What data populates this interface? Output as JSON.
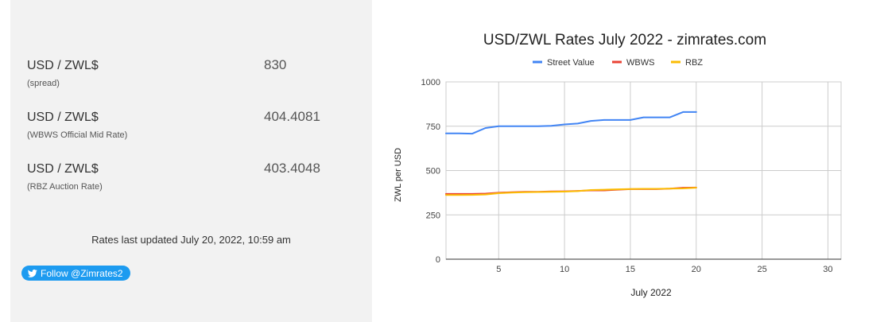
{
  "rates": [
    {
      "pair": "USD / ZWL$",
      "value": "830",
      "desc": "(spread)"
    },
    {
      "pair": "USD / ZWL$",
      "value": "404.4081",
      "desc": "(WBWS Official Mid Rate)"
    },
    {
      "pair": "USD / ZWL$",
      "value": "403.4048",
      "desc": "(RBZ Auction Rate)"
    }
  ],
  "updated_text": "Rates last updated July 20, 2022, 10:59 am",
  "follow": {
    "label": "Follow @Zimrates2",
    "icon": "twitter-bird-icon"
  },
  "colors": {
    "street": "#4285f4",
    "wbws": "#ea4335",
    "rbz": "#fbbc04",
    "follow_bg": "#1d9bf0"
  },
  "chart_data": {
    "type": "line",
    "title": "USD/ZWL Rates July 2022 - zimrates.com",
    "xlabel": "July 2022",
    "ylabel": "ZWL per USD",
    "xlim": [
      1,
      31
    ],
    "ylim": [
      0,
      1000
    ],
    "xticks": [
      5,
      10,
      15,
      20,
      25,
      30
    ],
    "yticks": [
      0,
      250,
      500,
      750,
      1000
    ],
    "legend_position": "top",
    "grid": true,
    "x": [
      1,
      2,
      3,
      4,
      5,
      6,
      7,
      8,
      9,
      10,
      11,
      12,
      13,
      14,
      15,
      16,
      17,
      18,
      19,
      20
    ],
    "series": [
      {
        "name": "Street Value",
        "color": "#4285f4",
        "values": [
          710,
          710,
          708,
          740,
          750,
          750,
          750,
          750,
          752,
          760,
          765,
          780,
          785,
          785,
          785,
          800,
          800,
          800,
          830,
          830
        ]
      },
      {
        "name": "WBWS",
        "color": "#ea4335",
        "values": [
          368,
          368,
          368,
          370,
          375,
          378,
          380,
          380,
          382,
          383,
          385,
          388,
          388,
          392,
          395,
          395,
          395,
          398,
          403,
          404
        ]
      },
      {
        "name": "RBZ",
        "color": "#fbbc04",
        "values": [
          362,
          362,
          363,
          365,
          372,
          376,
          378,
          379,
          380,
          381,
          384,
          390,
          392,
          394,
          396,
          397,
          397,
          398,
          399,
          403
        ]
      }
    ]
  }
}
